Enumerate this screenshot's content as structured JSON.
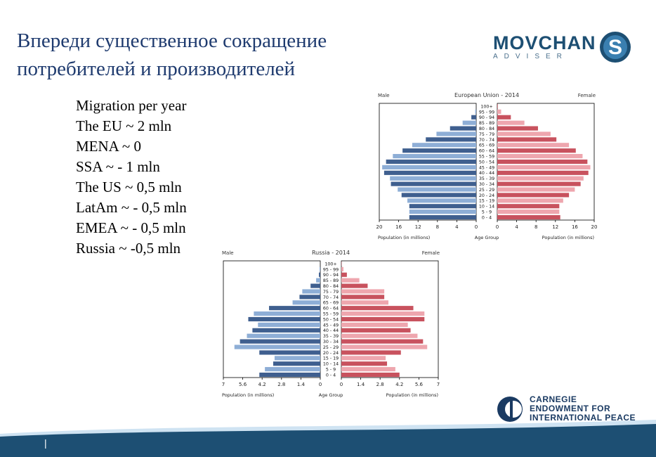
{
  "slide": {
    "title_line1": "Впереди существенное сокращение",
    "title_line2": "потребителей и производителей",
    "logo_top": {
      "name": "MOVCHAN",
      "sub": "ADVISER",
      "mark_letter": "S"
    },
    "migration": [
      "Migration per year",
      "The EU ~ 2 mln",
      "MENA ~ 0",
      "SSA ~ - 1 mln",
      "The US ~ 0,5 mln",
      "LatAm ~ - 0,5 mln",
      "EMEA ~ - 0,5 mln",
      "Russia ~ -0,5 mln"
    ],
    "logo_bottom": {
      "line1": "CARNEGIE",
      "line2": "ENDOWMENT FOR",
      "line3": "INTERNATIONAL PEACE"
    },
    "page_marker": "|"
  },
  "colors": {
    "title": "#1f3b6f",
    "male_dark": "#3f5f8f",
    "male_light": "#8eaed6",
    "female_dark": "#c8525e",
    "female_light": "#eea6ae",
    "footer": "#1d4f73"
  },
  "chart_data": [
    {
      "type": "bar",
      "orientation": "population-pyramid",
      "title": "European Union - 2014",
      "left_label": "Male",
      "right_label": "Female",
      "xlabel_left": "Population (in millions)",
      "xlabel_center": "Age Group",
      "xlabel_right": "Population (in millions)",
      "xlim": [
        0,
        20
      ],
      "xticks_left": [
        "20",
        "16",
        "12",
        "8",
        "4",
        "0"
      ],
      "xticks_right": [
        "0",
        "4",
        "8",
        "12",
        "16",
        "20"
      ],
      "categories": [
        "0 - 4",
        "5 - 9",
        "10 - 14",
        "15 - 19",
        "20 - 24",
        "25 - 29",
        "30 - 34",
        "35 - 39",
        "40 - 44",
        "45 - 49",
        "50 - 54",
        "55 - 59",
        "60 - 64",
        "65 - 69",
        "70 - 74",
        "75 - 79",
        "80 - 84",
        "85 - 89",
        "90 - 94",
        "95 - 99",
        "100+"
      ],
      "series": [
        {
          "name": "Male",
          "values": [
            13.8,
            13.8,
            13.8,
            14.2,
            15.4,
            16.2,
            17.6,
            17.8,
            19.0,
            19.4,
            18.6,
            17.2,
            15.2,
            13.2,
            10.4,
            8.2,
            5.4,
            2.8,
            1.0,
            0.2,
            0.0
          ]
        },
        {
          "name": "Female",
          "values": [
            13.0,
            12.8,
            12.8,
            13.6,
            14.8,
            16.0,
            17.2,
            17.8,
            18.8,
            19.2,
            18.6,
            17.6,
            16.2,
            14.8,
            12.2,
            11.0,
            8.4,
            5.6,
            2.8,
            0.8,
            0.1
          ]
        }
      ]
    },
    {
      "type": "bar",
      "orientation": "population-pyramid",
      "title": "Russia - 2014",
      "left_label": "Male",
      "right_label": "Female",
      "xlabel_left": "Population (in millions)",
      "xlabel_center": "Age Group",
      "xlabel_right": "Population (in millions)",
      "xlim": [
        0,
        7
      ],
      "xticks_left": [
        "7",
        "5.6",
        "4.2",
        "2.8",
        "1.4",
        "0"
      ],
      "xticks_right": [
        "0",
        "1.4",
        "2.8",
        "4.2",
        "5.6",
        "7"
      ],
      "categories": [
        "0 - 4",
        "5 - 9",
        "10 - 14",
        "15 - 19",
        "20 - 24",
        "25 - 29",
        "30 - 34",
        "35 - 39",
        "40 - 44",
        "45 - 49",
        "50 - 54",
        "55 - 59",
        "60 - 64",
        "65 - 69",
        "70 - 74",
        "75 - 79",
        "80 - 84",
        "85 - 89",
        "90 - 94",
        "95 - 99",
        "100+"
      ],
      "series": [
        {
          "name": "Male",
          "values": [
            4.4,
            4.0,
            3.4,
            3.3,
            4.4,
            6.2,
            5.8,
            5.3,
            4.9,
            4.5,
            5.2,
            4.8,
            3.7,
            2.0,
            1.5,
            1.3,
            0.7,
            0.3,
            0.1,
            0.05,
            0.0
          ]
        },
        {
          "name": "Female",
          "values": [
            4.2,
            3.9,
            3.3,
            3.2,
            4.3,
            6.2,
            5.9,
            5.5,
            5.0,
            4.8,
            6.0,
            6.0,
            5.2,
            3.4,
            3.1,
            3.1,
            1.9,
            1.3,
            0.4,
            0.15,
            0.02
          ]
        }
      ]
    }
  ]
}
